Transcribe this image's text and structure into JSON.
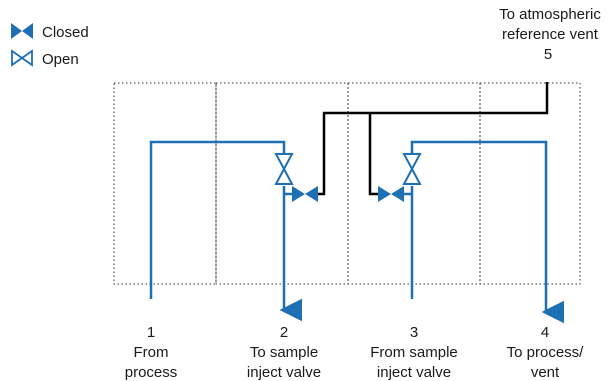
{
  "legend": {
    "closed_label": "Closed",
    "open_label": "Open"
  },
  "ports": {
    "p1": {
      "number": "1",
      "line1": "From",
      "line2": "process"
    },
    "p2": {
      "number": "2",
      "line1": "To sample",
      "line2": "inject valve"
    },
    "p3": {
      "number": "3",
      "line1": "From sample",
      "line2": "inject valve"
    },
    "p4": {
      "number": "4",
      "line1": "To process/",
      "line2": "vent"
    },
    "p5": {
      "line1": "To atmospheric",
      "line2": "reference vent",
      "number": "5"
    }
  },
  "colors": {
    "process_line": "#1f6fb4",
    "vent_line": "#000000",
    "section_border": "#333333"
  }
}
